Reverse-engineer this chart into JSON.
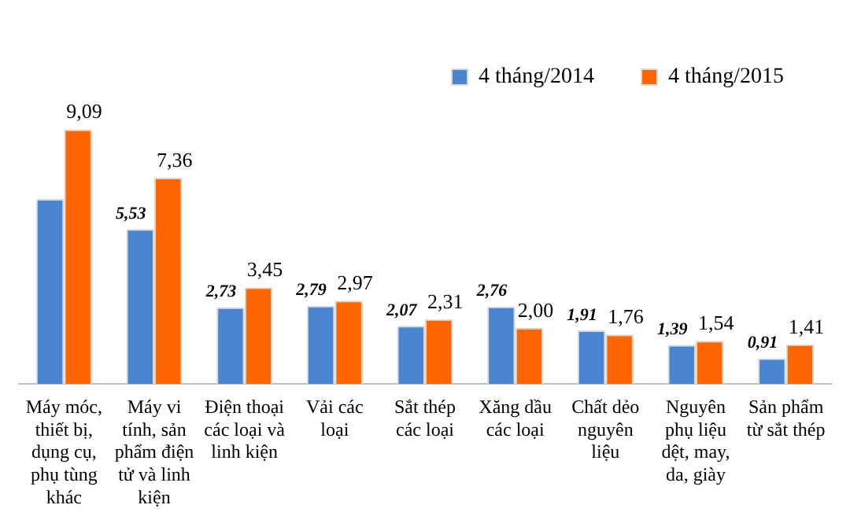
{
  "chart_data": {
    "type": "bar",
    "categories": [
      "Máy móc, thiết bị, dụng cụ, phụ tùng khác",
      "Máy vi tính, sản phẩm điện tử và linh kiện",
      "Điện thoại các loại và linh kiện",
      "Vải các loại",
      "Sắt thép các loại",
      "Xăng dầu các loại",
      "Chất dẻo nguyên liệu",
      "Nguyên phụ liệu dệt, may, da, giày",
      "Sản phẩm từ sắt thép"
    ],
    "series": [
      {
        "name": "4 tháng/2014",
        "color": "#4a86d0",
        "values": [
          6.6,
          5.53,
          2.73,
          2.79,
          2.07,
          2.76,
          1.91,
          1.39,
          0.91
        ],
        "value_labels": [
          null,
          "5,53",
          "2,73",
          "2,79",
          "2,07",
          "2,76",
          "1,91",
          "1,39",
          "0,91"
        ]
      },
      {
        "name": "4 tháng/2015",
        "color": "#ff6600",
        "values": [
          9.09,
          7.36,
          3.45,
          2.97,
          2.31,
          2.0,
          1.76,
          1.54,
          1.41
        ],
        "value_labels": [
          "9,09",
          "7,36",
          "3,45",
          "2,97",
          "2,31",
          "2,00",
          "1,76",
          "1,54",
          "1,41"
        ]
      }
    ],
    "legend": "top right",
    "grid": false
  }
}
